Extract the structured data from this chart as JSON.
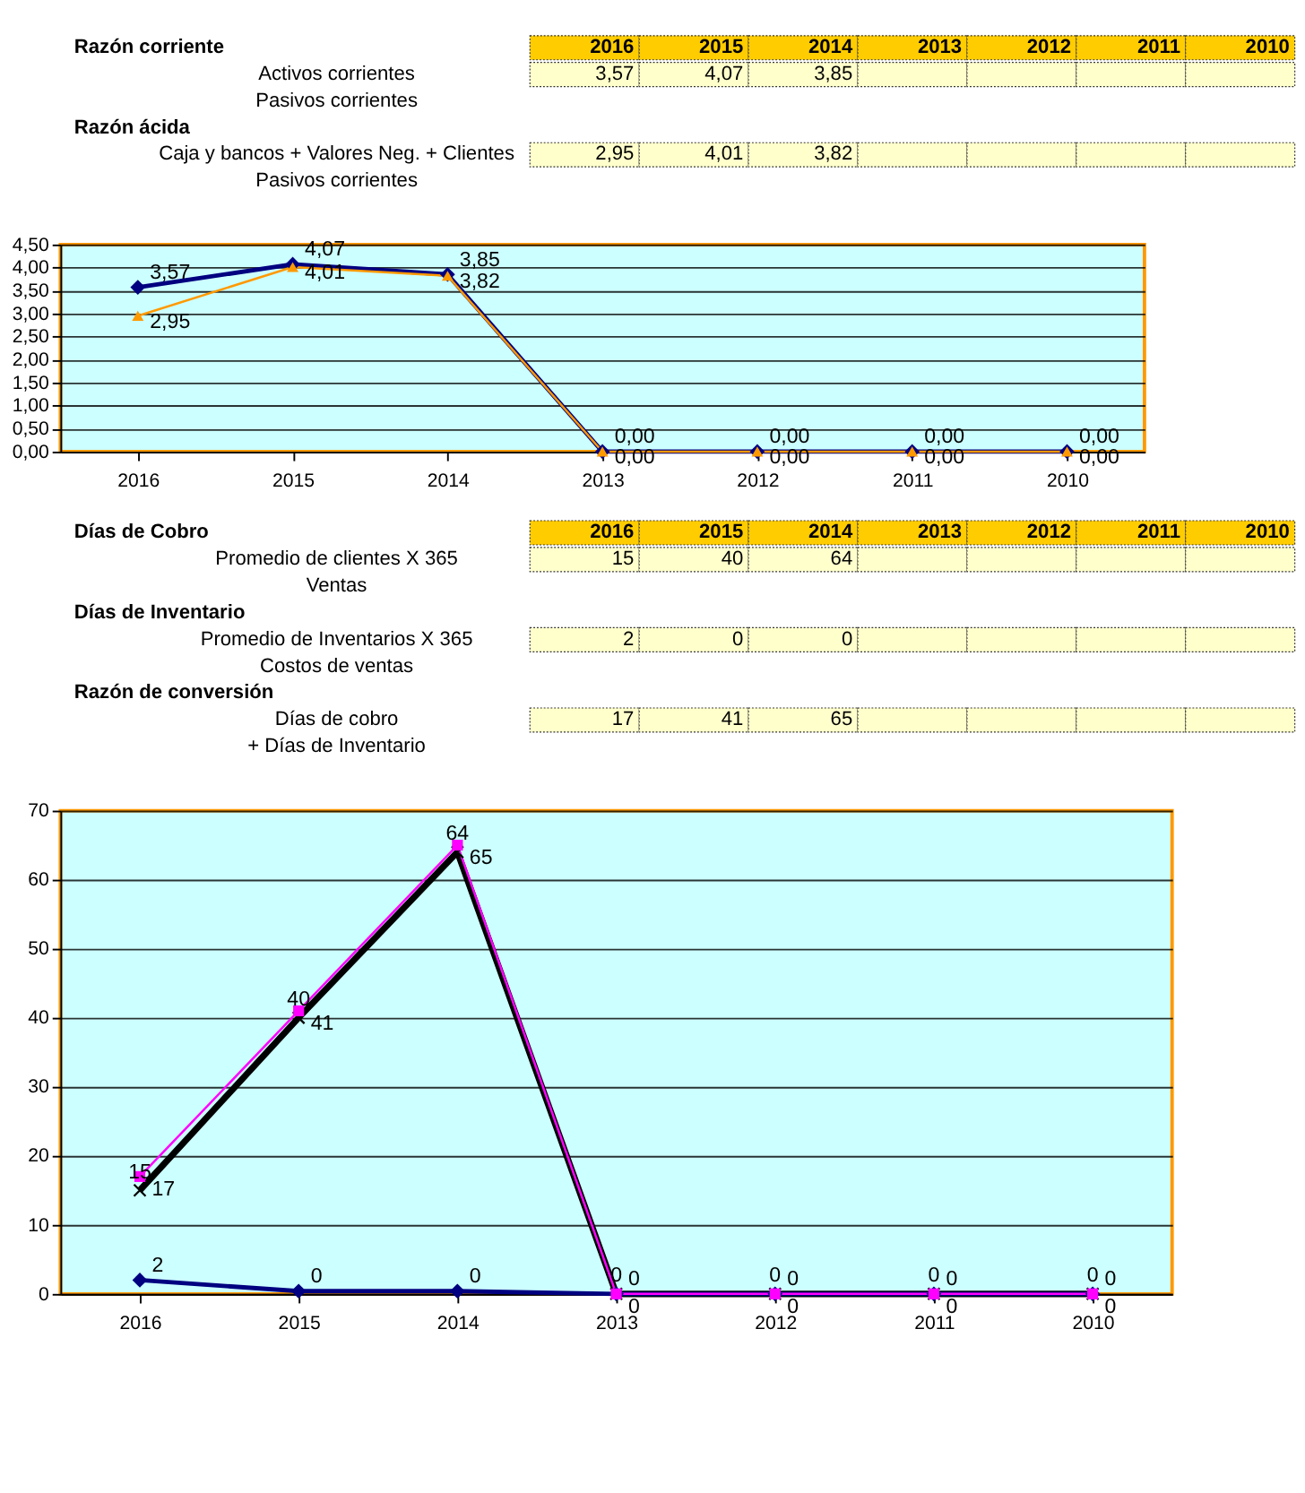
{
  "chart_data": [
    {
      "type": "line",
      "categories": [
        "2016",
        "2015",
        "2014",
        "2013",
        "2012",
        "2011",
        "2010"
      ],
      "annotations": [
        "Razón corriente",
        "Activos corrientes",
        "Pasivos corrientes",
        "Razón ácida",
        "Caja y bancos + Valores Neg. + Clientes",
        "Pasivos corrientes"
      ],
      "series": [
        {
          "color": "#000080",
          "marker": "diamond",
          "values": [
            3.57,
            4.07,
            3.85,
            0,
            0,
            0,
            0
          ],
          "value_labels": [
            "3,57",
            "4,07",
            "3,85",
            "0,00",
            "0,00",
            "0,00",
            "0,00"
          ]
        },
        {
          "color": "#ff9900",
          "marker": "triangle",
          "values": [
            2.95,
            4.01,
            3.82,
            0,
            0,
            0,
            0
          ],
          "value_labels": [
            "2,95",
            "4,01",
            "3,82",
            "0,00",
            "0,00",
            "0,00",
            "0,00"
          ]
        }
      ],
      "ylim": [
        0,
        4.5
      ],
      "yticks": [
        {
          "value": 0,
          "label": "0,00"
        },
        {
          "value": 0.5,
          "label": "0,50"
        },
        {
          "value": 1,
          "label": "1,00"
        },
        {
          "value": 1.5,
          "label": "1,50"
        },
        {
          "value": 2,
          "label": "2,00"
        },
        {
          "value": 2.5,
          "label": "2,50"
        },
        {
          "value": 3,
          "label": "3,00"
        },
        {
          "value": 3.5,
          "label": "3,50"
        },
        {
          "value": 4,
          "label": "4,00"
        },
        {
          "value": 4.5,
          "label": "4,50"
        }
      ],
      "grid": "y"
    },
    {
      "type": "line",
      "categories": [
        "2016",
        "2015",
        "2014",
        "2013",
        "2012",
        "2011",
        "2010"
      ],
      "annotations": [
        "Días de Cobro",
        "Promedio de clientes X 365",
        "Ventas",
        "Días de Inventario",
        "Promedio de Inventarios X 365",
        "Costos de ventas",
        "Razón de conversión",
        "Días de cobro",
        "+ Días de Inventario"
      ],
      "series": [
        {
          "color": "#000000",
          "marker": "cross",
          "values": [
            15,
            40,
            64,
            0,
            0,
            0,
            0
          ],
          "value_labels": [
            "15",
            "40",
            "64",
            "0",
            "0",
            "0",
            "0"
          ]
        },
        {
          "color": "#000080",
          "marker": "diamond",
          "values": [
            2,
            0.4,
            0.4,
            0,
            0,
            0,
            0
          ],
          "value_labels": [
            "2",
            "0",
            "0",
            "0",
            "0",
            "0",
            "0"
          ]
        },
        {
          "color": "#ff00ff",
          "marker": "square",
          "values": [
            17,
            41,
            65,
            0,
            0,
            0,
            0
          ],
          "value_labels": [
            "17",
            "41",
            "65",
            "0",
            "0",
            "0",
            "0"
          ]
        }
      ],
      "ylim": [
        0,
        70
      ],
      "yticks": [
        0,
        10,
        20,
        30,
        40,
        50,
        60,
        70
      ],
      "grid": "y"
    }
  ]
}
